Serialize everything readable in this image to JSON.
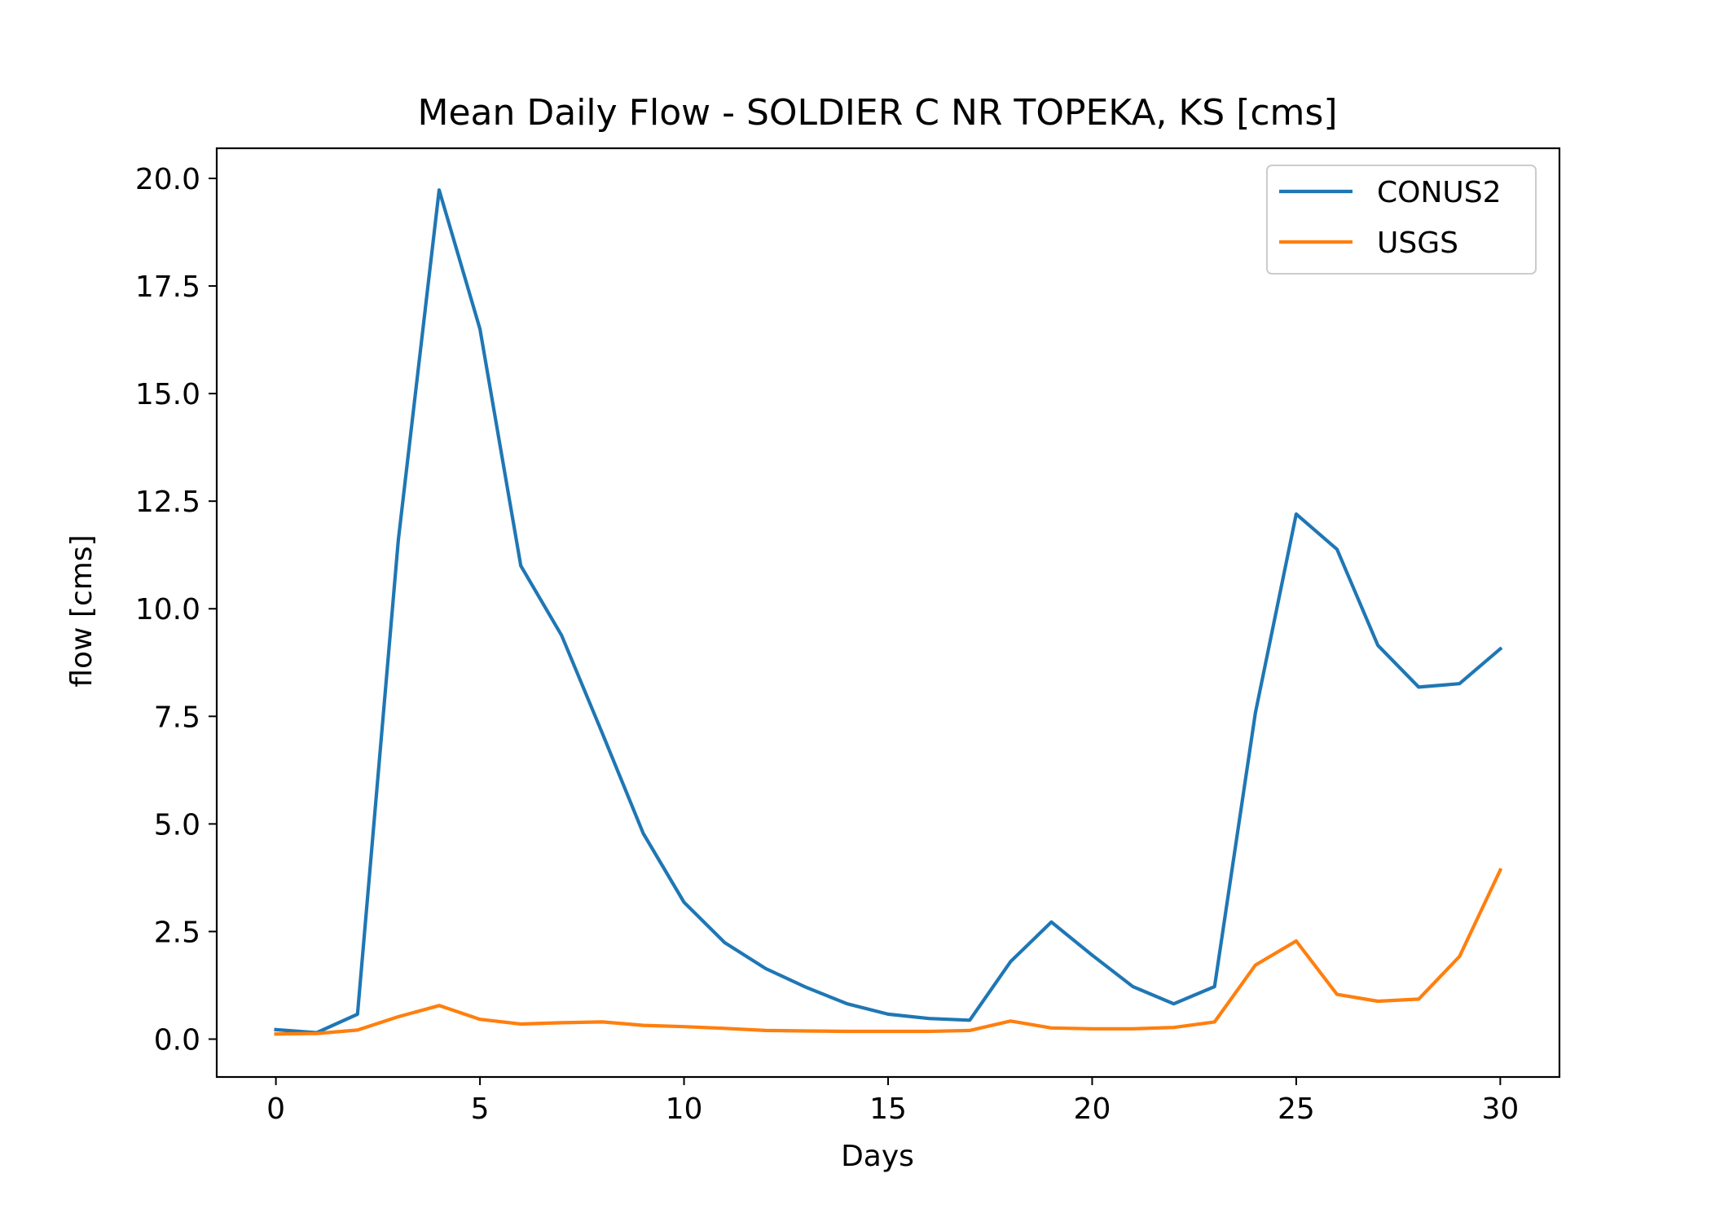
{
  "chart_data": {
    "type": "line",
    "title": "Mean Daily Flow - SOLDIER C NR TOPEKA, KS [cms]",
    "xlabel": "Days",
    "ylabel": "flow [cms]",
    "xlim": [
      -1.45,
      31.45
    ],
    "ylim": [
      -0.88,
      20.7
    ],
    "xticks": [
      0,
      5,
      10,
      15,
      20,
      25,
      30
    ],
    "yticks": [
      0.0,
      2.5,
      5.0,
      7.5,
      10.0,
      12.5,
      15.0,
      17.5,
      20.0
    ],
    "xtick_labels": [
      "0",
      "5",
      "10",
      "15",
      "20",
      "25",
      "30"
    ],
    "ytick_labels": [
      "0.0",
      "2.5",
      "5.0",
      "7.5",
      "10.0",
      "12.5",
      "15.0",
      "17.5",
      "20.0"
    ],
    "grid": false,
    "legend_position": "top-right",
    "x": [
      0,
      1,
      2,
      3,
      4,
      5,
      6,
      7,
      8,
      9,
      10,
      11,
      12,
      13,
      14,
      15,
      16,
      17,
      18,
      19,
      20,
      21,
      22,
      23,
      24,
      25,
      26,
      27,
      28,
      29,
      30
    ],
    "series": [
      {
        "name": "CONUS2",
        "color": "#1f77b4",
        "values": [
          0.22,
          0.15,
          0.58,
          11.6,
          19.73,
          16.5,
          11.0,
          9.38,
          7.1,
          4.78,
          3.18,
          2.24,
          1.64,
          1.2,
          0.82,
          0.58,
          0.48,
          0.44,
          1.8,
          2.72,
          1.95,
          1.22,
          0.82,
          1.22,
          7.58,
          12.2,
          11.38,
          9.15,
          8.18,
          8.26,
          9.07
        ]
      },
      {
        "name": "USGS",
        "color": "#ff7f0e",
        "values": [
          0.12,
          0.13,
          0.21,
          0.52,
          0.78,
          0.46,
          0.35,
          0.38,
          0.4,
          0.32,
          0.29,
          0.25,
          0.2,
          0.19,
          0.18,
          0.18,
          0.18,
          0.2,
          0.42,
          0.26,
          0.24,
          0.24,
          0.27,
          0.4,
          1.72,
          2.28,
          1.04,
          0.88,
          0.93,
          1.92,
          3.93
        ]
      }
    ]
  }
}
